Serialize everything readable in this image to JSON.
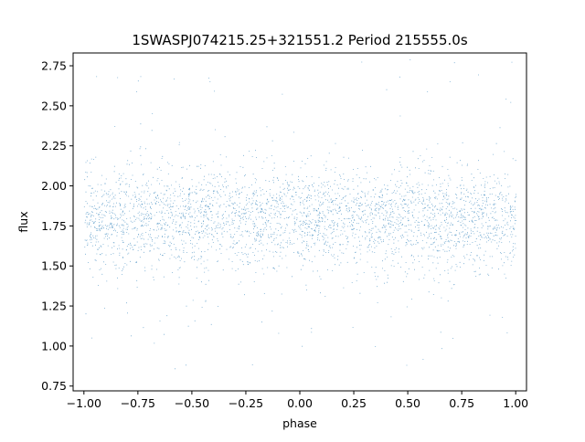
{
  "chart_data": {
    "type": "scatter",
    "title": "1SWASPJ074215.25+321551.2 Period 215555.0s",
    "xlabel": "phase",
    "ylabel": "flux",
    "xlim": [
      -1.05,
      1.05
    ],
    "ylim": [
      0.72,
      2.83
    ],
    "x_ticks": [
      -1.0,
      -0.75,
      -0.5,
      -0.25,
      0.0,
      0.25,
      0.5,
      0.75,
      1.0
    ],
    "x_tick_labels": [
      "−1.00",
      "−0.75",
      "−0.50",
      "−0.25",
      "0.00",
      "0.25",
      "0.50",
      "0.75",
      "1.00"
    ],
    "y_ticks": [
      0.75,
      1.0,
      1.25,
      1.5,
      1.75,
      2.0,
      2.25,
      2.5,
      2.75
    ],
    "y_tick_labels": [
      "0.75",
      "1.00",
      "1.25",
      "1.50",
      "1.75",
      "2.00",
      "2.25",
      "2.50",
      "2.75"
    ],
    "grid": false,
    "legend": "none",
    "marker_color": "#1f77b4",
    "series": [
      {
        "x_range": [
          -1.0,
          1.0
        ],
        "y_center": 1.8,
        "y_core_spread": [
          1.5,
          2.1
        ],
        "y_extent": [
          0.8,
          2.8
        ],
        "description_points": "dense uniform scatter of many thousands of points across phase, concentrated between 1.5 and 2.1 flux with sparse outliers up to 2.8 and down to 0.8"
      }
    ]
  }
}
